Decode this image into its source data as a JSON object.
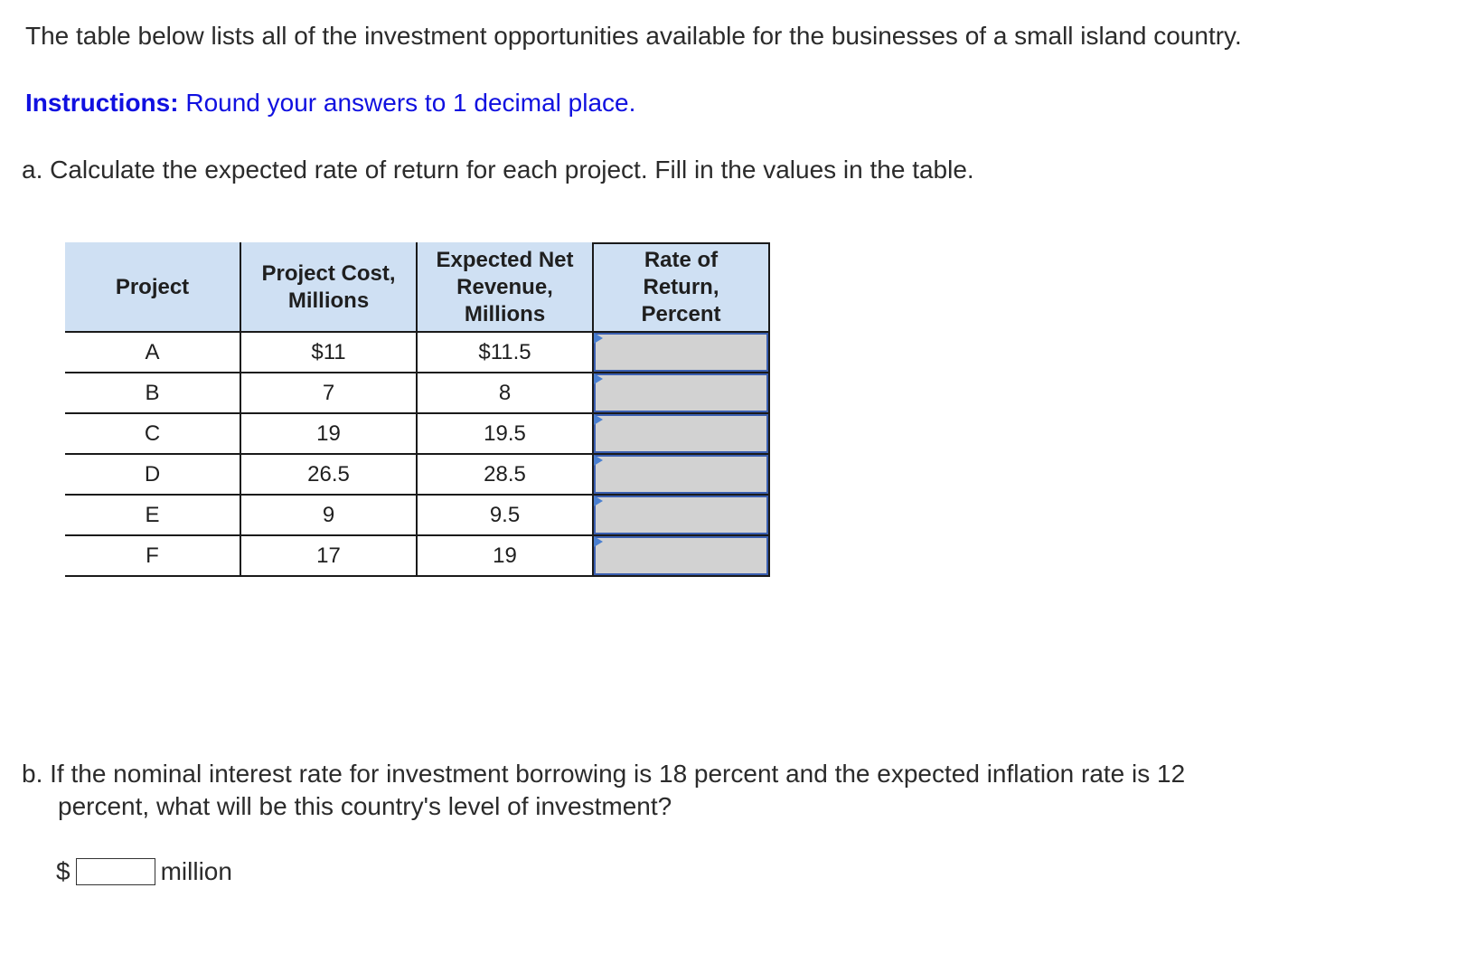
{
  "intro": "The table below lists all of the investment opportunities available for the businesses of a small island country.",
  "instructions": {
    "label": "Instructions:",
    "text": " Round your answers to 1 decimal place."
  },
  "question_a": "a. Calculate the expected rate of return for each project. Fill in the values in the table.",
  "table": {
    "headers": [
      [
        "Project"
      ],
      [
        "Project Cost,",
        "Millions"
      ],
      [
        "Expected Net",
        "Revenue,",
        "Millions"
      ],
      [
        "Rate of",
        "Return,",
        "Percent"
      ]
    ],
    "rows": [
      {
        "project": "A",
        "cost": "$11",
        "revenue": "$11.5",
        "rate": ""
      },
      {
        "project": "B",
        "cost": "7",
        "revenue": "8",
        "rate": ""
      },
      {
        "project": "C",
        "cost": "19",
        "revenue": "19.5",
        "rate": ""
      },
      {
        "project": "D",
        "cost": "26.5",
        "revenue": "28.5",
        "rate": ""
      },
      {
        "project": "E",
        "cost": "9",
        "revenue": "9.5",
        "rate": ""
      },
      {
        "project": "F",
        "cost": "17",
        "revenue": "19",
        "rate": ""
      }
    ]
  },
  "question_b": {
    "line1": "b. If the nominal interest rate for investment borrowing is 18 percent and the expected inflation rate is 12",
    "line2": "percent, what will be this country's level of investment?"
  },
  "answer_b": {
    "prefix": "$",
    "value": "",
    "suffix": "million"
  },
  "colors": {
    "header_bg": "#cfe0f3",
    "input_bg": "#d2d2d2",
    "input_border": "#3b5fb0",
    "instructions": "#1010e0"
  }
}
